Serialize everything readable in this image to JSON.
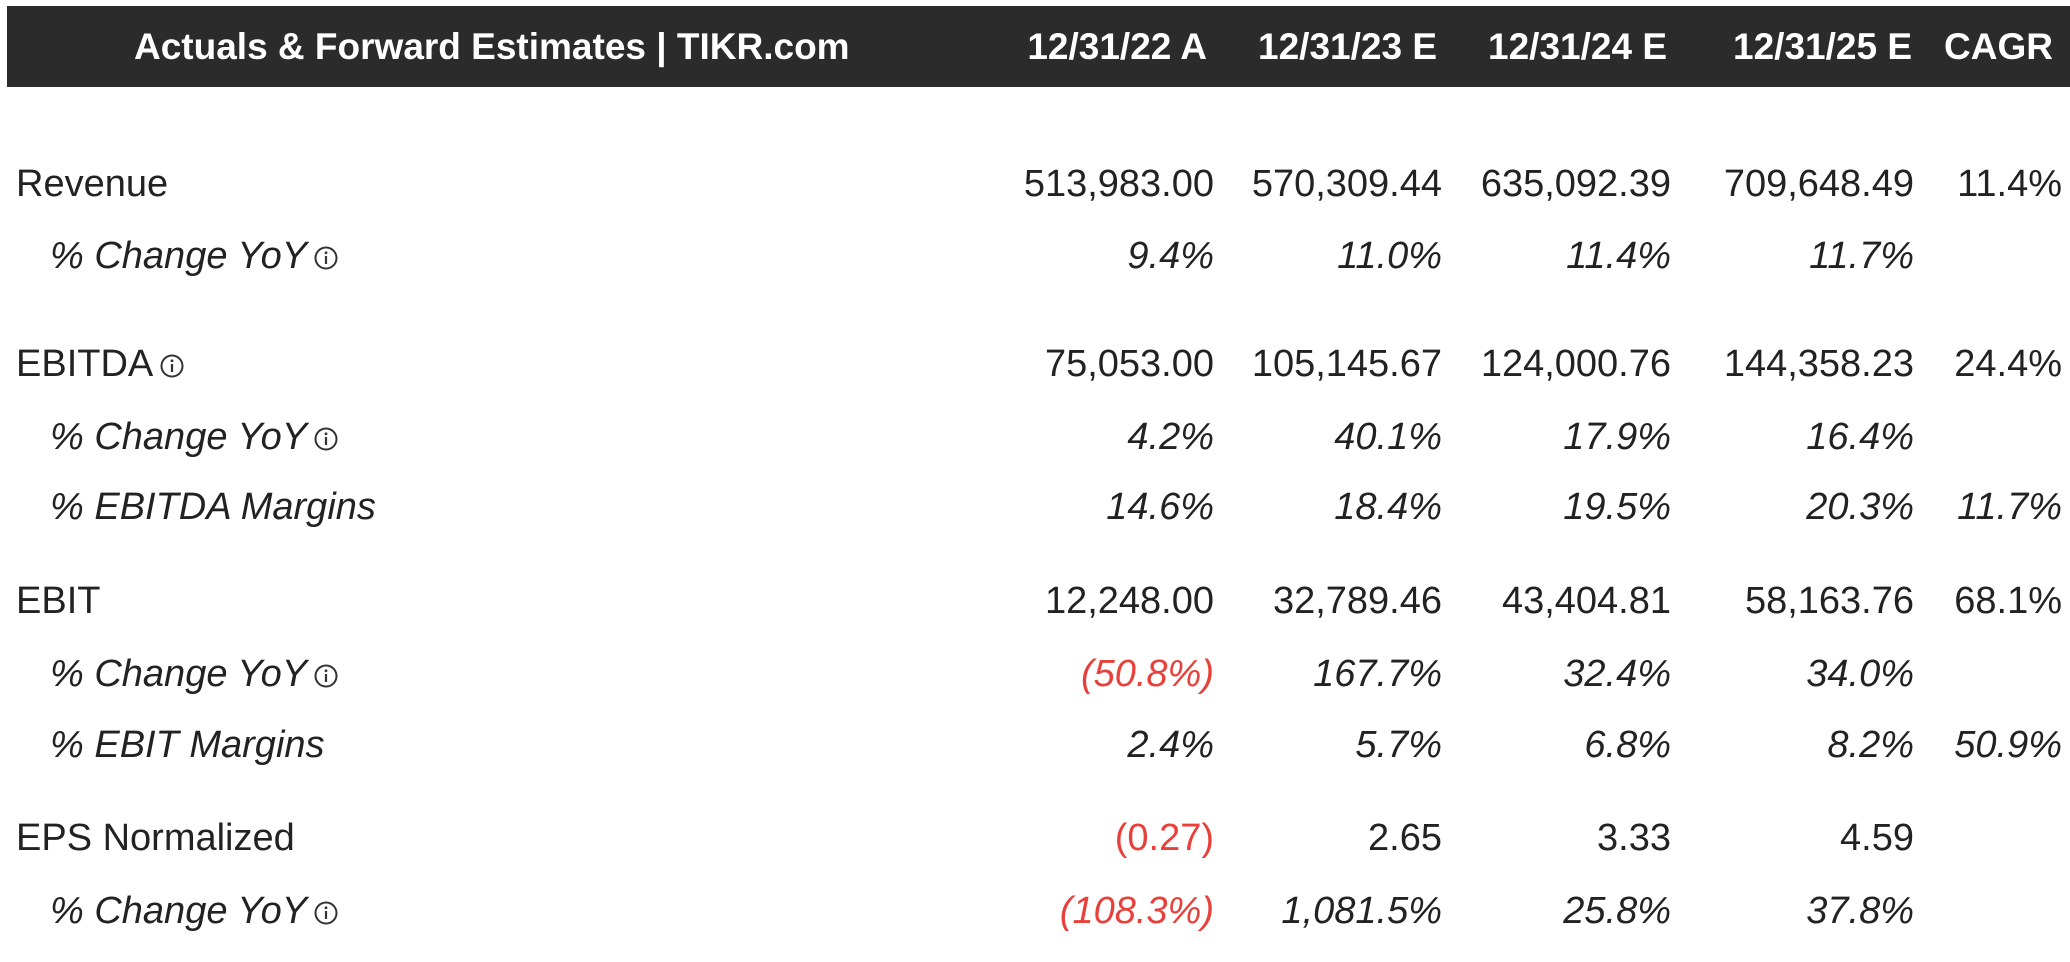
{
  "header": {
    "title": "Actuals & Forward Estimates | TIKR.com",
    "columns": [
      "12/31/22 A",
      "12/31/23 E",
      "12/31/24 E",
      "12/31/25 E",
      "CAGR"
    ]
  },
  "rows": [
    {
      "label": "Revenue",
      "values": [
        "513,983.00",
        "570,309.44",
        "635,092.39",
        "709,648.49",
        "11.4%"
      ]
    },
    {
      "label": "% Change YoY",
      "values": [
        "9.4%",
        "11.0%",
        "11.4%",
        "11.7%",
        ""
      ]
    },
    {
      "label": "EBITDA",
      "values": [
        "75,053.00",
        "105,145.67",
        "124,000.76",
        "144,358.23",
        "24.4%"
      ]
    },
    {
      "label": "% Change YoY",
      "values": [
        "4.2%",
        "40.1%",
        "17.9%",
        "16.4%",
        ""
      ]
    },
    {
      "label": "% EBITDA Margins",
      "values": [
        "14.6%",
        "18.4%",
        "19.5%",
        "20.3%",
        "11.7%"
      ]
    },
    {
      "label": "EBIT",
      "values": [
        "12,248.00",
        "32,789.46",
        "43,404.81",
        "58,163.76",
        "68.1%"
      ]
    },
    {
      "label": "% Change YoY",
      "values": [
        "(50.8%)",
        "167.7%",
        "32.4%",
        "34.0%",
        ""
      ]
    },
    {
      "label": "% EBIT Margins",
      "values": [
        "2.4%",
        "5.7%",
        "6.8%",
        "8.2%",
        "50.9%"
      ]
    },
    {
      "label": "EPS Normalized",
      "values": [
        "(0.27)",
        "2.65",
        "3.33",
        "4.59",
        ""
      ]
    },
    {
      "label": "% Change YoY",
      "values": [
        "(108.3%)",
        "1,081.5%",
        "25.8%",
        "37.8%",
        ""
      ]
    }
  ],
  "colors": {
    "header_bg": "#2b2b2b",
    "negative": "#e8403a",
    "text": "#222222"
  },
  "icons": {
    "info": "info-circle-icon"
  }
}
